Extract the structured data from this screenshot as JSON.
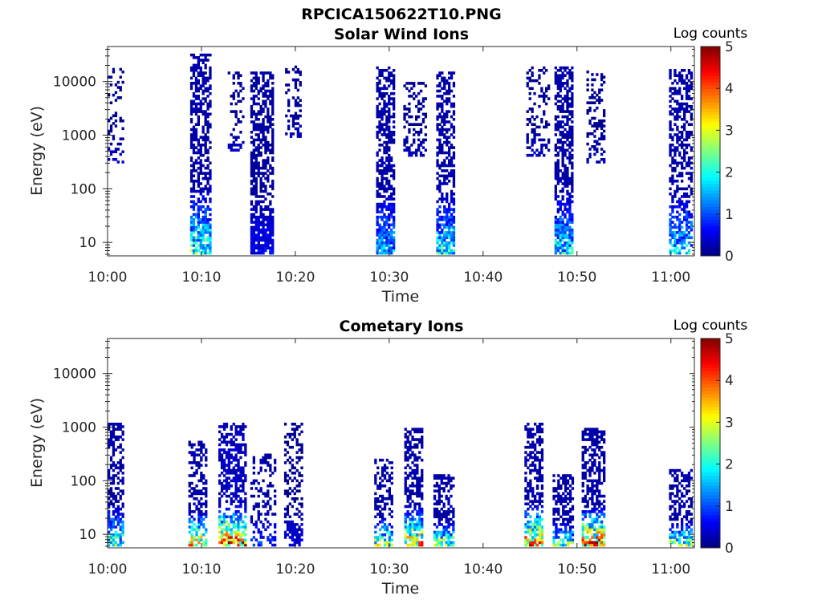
{
  "figure": {
    "title": "RPCICA150622T10.PNG"
  },
  "chart_data": [
    {
      "type": "heatmap",
      "title": "Solar Wind Ions",
      "xlabel": "Time",
      "ylabel": "Energy (eV)",
      "x_ticks": [
        "10:00",
        "10:10",
        "10:20",
        "10:30",
        "10:40",
        "10:50",
        "11:00"
      ],
      "x_range_minutes": [
        0,
        62.5
      ],
      "y_ticks": [
        "10",
        "100",
        "1000",
        "10000"
      ],
      "y_scale": "log",
      "y_range": [
        5.6,
        45000
      ],
      "colorbar": {
        "label": "Log counts",
        "range": [
          0,
          5
        ],
        "ticks": [
          "0",
          "1",
          "2",
          "3",
          "4",
          "5"
        ],
        "colormap": "jet"
      },
      "bursts": [
        {
          "t_start": 0.0,
          "t_end": 1.7,
          "e_min": 300,
          "e_max": 17000,
          "density": 0.25,
          "low_level": 0.2,
          "high_level": 0.1
        },
        {
          "t_start": 8.8,
          "t_end": 11.0,
          "e_min": 6,
          "e_max": 30000,
          "density": 0.55,
          "low_level": 1.8,
          "high_level": 0.2
        },
        {
          "t_start": 12.8,
          "t_end": 14.4,
          "e_min": 500,
          "e_max": 14000,
          "density": 0.25,
          "low_level": 0.2,
          "high_level": 0.1
        },
        {
          "t_start": 15.2,
          "t_end": 17.5,
          "e_min": 6,
          "e_max": 15000,
          "density": 0.6,
          "low_level": 0.4,
          "high_level": 0.15
        },
        {
          "t_start": 18.9,
          "t_end": 20.6,
          "e_min": 900,
          "e_max": 19000,
          "density": 0.3,
          "low_level": 0.2,
          "high_level": 0.1
        },
        {
          "t_start": 28.6,
          "t_end": 30.4,
          "e_min": 6,
          "e_max": 19000,
          "density": 0.6,
          "low_level": 1.2,
          "high_level": 0.2
        },
        {
          "t_start": 31.5,
          "t_end": 33.8,
          "e_min": 400,
          "e_max": 9000,
          "density": 0.3,
          "low_level": 0.2,
          "high_level": 0.1
        },
        {
          "t_start": 35.0,
          "t_end": 37.0,
          "e_min": 6,
          "e_max": 14000,
          "density": 0.55,
          "low_level": 1.6,
          "high_level": 0.2
        },
        {
          "t_start": 44.6,
          "t_end": 47.0,
          "e_min": 400,
          "e_max": 18000,
          "density": 0.3,
          "low_level": 0.2,
          "high_level": 0.1
        },
        {
          "t_start": 47.6,
          "t_end": 49.6,
          "e_min": 6,
          "e_max": 18000,
          "density": 0.6,
          "low_level": 1.5,
          "high_level": 0.2
        },
        {
          "t_start": 51.0,
          "t_end": 53.0,
          "e_min": 300,
          "e_max": 15000,
          "density": 0.3,
          "low_level": 0.2,
          "high_level": 0.1
        },
        {
          "t_start": 59.8,
          "t_end": 62.3,
          "e_min": 6,
          "e_max": 16000,
          "density": 0.5,
          "low_level": 1.4,
          "high_level": 0.2
        }
      ]
    },
    {
      "type": "heatmap",
      "title": "Cometary Ions",
      "xlabel": "Time",
      "ylabel": "Energy (eV)",
      "x_ticks": [
        "10:00",
        "10:10",
        "10:20",
        "10:30",
        "10:40",
        "10:50",
        "11:00"
      ],
      "x_range_minutes": [
        0,
        62.5
      ],
      "y_ticks": [
        "10",
        "100",
        "1000",
        "10000"
      ],
      "y_scale": "log",
      "y_range": [
        5.6,
        45000
      ],
      "colorbar": {
        "label": "Log counts",
        "range": [
          0,
          5
        ],
        "ticks": [
          "0",
          "1",
          "2",
          "3",
          "4",
          "5"
        ],
        "colormap": "jet"
      },
      "bursts": [
        {
          "t_start": 0.0,
          "t_end": 1.6,
          "e_min": 6,
          "e_max": 1200,
          "density": 0.5,
          "low_level": 1.8,
          "high_level": 0.2
        },
        {
          "t_start": 8.6,
          "t_end": 10.6,
          "e_min": 6,
          "e_max": 500,
          "density": 0.5,
          "low_level": 2.8,
          "high_level": 0.2
        },
        {
          "t_start": 11.8,
          "t_end": 14.6,
          "e_min": 6,
          "e_max": 1200,
          "density": 0.5,
          "low_level": 3.4,
          "high_level": 0.3
        },
        {
          "t_start": 15.2,
          "t_end": 17.8,
          "e_min": 6,
          "e_max": 300,
          "density": 0.3,
          "low_level": 0.6,
          "high_level": 0.2
        },
        {
          "t_start": 18.8,
          "t_end": 20.8,
          "e_min": 6,
          "e_max": 1100,
          "density": 0.35,
          "low_level": 0.4,
          "high_level": 0.1
        },
        {
          "t_start": 28.4,
          "t_end": 30.3,
          "e_min": 6,
          "e_max": 250,
          "density": 0.45,
          "low_level": 2.2,
          "high_level": 0.2
        },
        {
          "t_start": 31.6,
          "t_end": 33.6,
          "e_min": 6,
          "e_max": 900,
          "density": 0.55,
          "low_level": 3.0,
          "high_level": 0.2
        },
        {
          "t_start": 34.7,
          "t_end": 36.8,
          "e_min": 6,
          "e_max": 120,
          "density": 0.55,
          "low_level": 2.3,
          "high_level": 0.2
        },
        {
          "t_start": 44.4,
          "t_end": 46.2,
          "e_min": 6,
          "e_max": 1100,
          "density": 0.55,
          "low_level": 3.3,
          "high_level": 0.2
        },
        {
          "t_start": 47.4,
          "t_end": 49.6,
          "e_min": 6,
          "e_max": 120,
          "density": 0.55,
          "low_level": 2.0,
          "high_level": 0.2
        },
        {
          "t_start": 50.5,
          "t_end": 53.0,
          "e_min": 6,
          "e_max": 900,
          "density": 0.55,
          "low_level": 3.5,
          "high_level": 0.2
        },
        {
          "t_start": 59.8,
          "t_end": 62.3,
          "e_min": 6,
          "e_max": 150,
          "density": 0.5,
          "low_level": 2.1,
          "high_level": 0.2
        }
      ]
    }
  ]
}
